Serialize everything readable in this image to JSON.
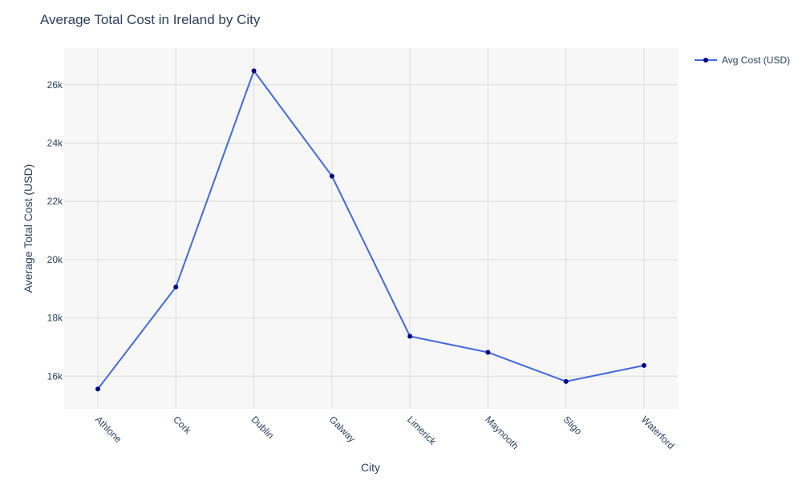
{
  "chart_data": {
    "type": "line",
    "title": "Average Total Cost in Ireland by City",
    "xlabel": "City",
    "ylabel": "Average Total Cost (USD)",
    "categories": [
      "Athlone",
      "Cork",
      "Dublin",
      "Galway",
      "Limerick",
      "Maynooth",
      "Sligo",
      "Waterford"
    ],
    "series": [
      {
        "name": "Avg Cost (USD)",
        "values": [
          15560,
          19060,
          26480,
          22870,
          17370,
          16820,
          15820,
          16370
        ],
        "line_color": "#4169e1",
        "marker_color": "#00008b"
      }
    ],
    "ylim": [
      14880,
      27260
    ],
    "yticks": [
      16000,
      18000,
      20000,
      22000,
      24000,
      26000
    ],
    "ytick_labels": [
      "16k",
      "18k",
      "20k",
      "22k",
      "24k",
      "26k"
    ],
    "grid": true,
    "legend_position": "top-right",
    "plot_background": "#f7f7f7",
    "grid_color": "#dddddd"
  }
}
